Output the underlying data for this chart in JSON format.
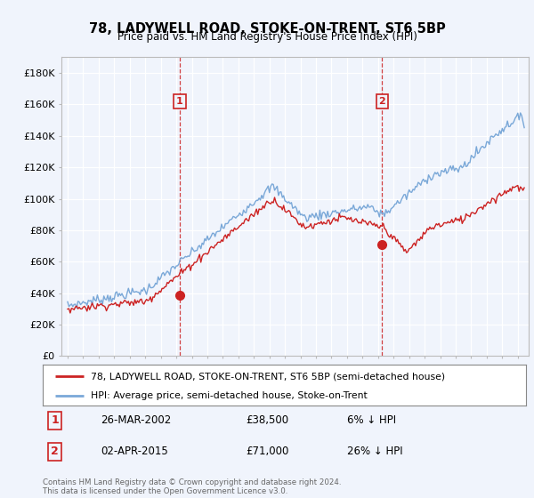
{
  "title": "78, LADYWELL ROAD, STOKE-ON-TRENT, ST6 5BP",
  "subtitle": "Price paid vs. HM Land Registry's House Price Index (HPI)",
  "ylim": [
    0,
    190000
  ],
  "yticks": [
    0,
    20000,
    40000,
    60000,
    80000,
    100000,
    120000,
    140000,
    160000,
    180000
  ],
  "ytick_labels": [
    "£0",
    "£20K",
    "£40K",
    "£60K",
    "£80K",
    "£100K",
    "£120K",
    "£140K",
    "£160K",
    "£180K"
  ],
  "hpi_color": "#7aa8d8",
  "price_color": "#cc2222",
  "vline_color": "#cc2222",
  "purchase1_date": 2002.22,
  "purchase1_price": 38500,
  "purchase2_date": 2015.25,
  "purchase2_price": 71000,
  "legend_property": "78, LADYWELL ROAD, STOKE-ON-TRENT, ST6 5BP (semi-detached house)",
  "legend_hpi": "HPI: Average price, semi-detached house, Stoke-on-Trent",
  "table_rows": [
    {
      "label": "1",
      "date": "26-MAR-2002",
      "price": "£38,500",
      "hpi": "6% ↓ HPI"
    },
    {
      "label": "2",
      "date": "02-APR-2015",
      "price": "£71,000",
      "hpi": "26% ↓ HPI"
    }
  ],
  "footnote": "Contains HM Land Registry data © Crown copyright and database right 2024.\nThis data is licensed under the Open Government Licence v3.0.",
  "bg_color": "#f0f4fc",
  "plot_bg": "#f0f4fc"
}
